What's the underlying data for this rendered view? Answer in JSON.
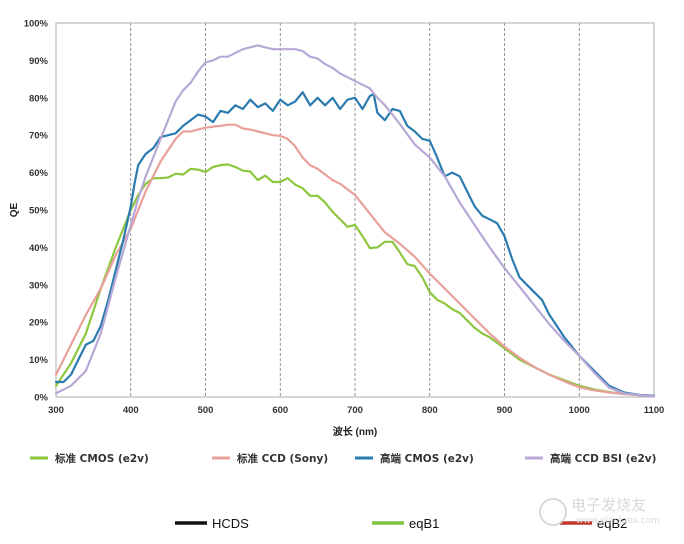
{
  "chart_data": {
    "type": "line",
    "title": "",
    "xlabel": "波长 (nm)",
    "ylabel": "QE",
    "xlim": [
      300,
      1100
    ],
    "ylim": [
      0,
      100
    ],
    "xticks": [
      300,
      400,
      500,
      600,
      700,
      800,
      900,
      1000,
      1100
    ],
    "xtick_labels": [
      "300",
      "400",
      "500",
      "600",
      "700",
      "800",
      "900",
      "1000",
      "1100"
    ],
    "yticks": [
      0,
      10,
      20,
      30,
      40,
      50,
      60,
      70,
      80,
      90,
      100
    ],
    "ytick_labels": [
      "0%",
      "10%",
      "20%",
      "30%",
      "40%",
      "50%",
      "60%",
      "70%",
      "80%",
      "90%",
      "100%"
    ],
    "grid": "vertical-dashed",
    "legend_position": "bottom",
    "series": [
      {
        "name": "标准 CMOS (e2v)",
        "color": "#8dc63f",
        "points": [
          [
            300,
            3
          ],
          [
            320,
            9
          ],
          [
            340,
            17
          ],
          [
            360,
            29
          ],
          [
            380,
            40
          ],
          [
            400,
            50
          ],
          [
            410,
            54
          ],
          [
            420,
            57
          ],
          [
            430,
            58.5
          ],
          [
            440,
            58.5
          ],
          [
            450,
            58.7
          ],
          [
            460,
            59.7
          ],
          [
            470,
            59.5
          ],
          [
            480,
            61
          ],
          [
            490,
            60.8
          ],
          [
            500,
            60.2
          ],
          [
            510,
            61.5
          ],
          [
            520,
            62
          ],
          [
            530,
            62.2
          ],
          [
            540,
            61.5
          ],
          [
            550,
            60.5
          ],
          [
            560,
            60.3
          ],
          [
            570,
            58
          ],
          [
            580,
            59.2
          ],
          [
            590,
            57.5
          ],
          [
            600,
            57.5
          ],
          [
            610,
            58.5
          ],
          [
            620,
            56.8
          ],
          [
            630,
            55.8
          ],
          [
            640,
            53.8
          ],
          [
            650,
            53.8
          ],
          [
            660,
            52
          ],
          [
            670,
            49.5
          ],
          [
            680,
            47.5
          ],
          [
            690,
            45.5
          ],
          [
            700,
            46
          ],
          [
            710,
            43
          ],
          [
            720,
            39.8
          ],
          [
            730,
            40
          ],
          [
            740,
            41.5
          ],
          [
            750,
            41.5
          ],
          [
            760,
            38.7
          ],
          [
            770,
            35.5
          ],
          [
            780,
            35
          ],
          [
            790,
            32
          ],
          [
            800,
            28
          ],
          [
            810,
            26
          ],
          [
            820,
            25
          ],
          [
            830,
            23.5
          ],
          [
            840,
            22.5
          ],
          [
            850,
            20.5
          ],
          [
            860,
            18.5
          ],
          [
            870,
            17
          ],
          [
            880,
            16
          ],
          [
            890,
            14.5
          ],
          [
            900,
            13
          ],
          [
            910,
            11.5
          ],
          [
            920,
            10
          ],
          [
            940,
            8
          ],
          [
            960,
            6
          ],
          [
            980,
            4.5
          ],
          [
            1000,
            3
          ],
          [
            1020,
            2
          ],
          [
            1040,
            1.3
          ],
          [
            1060,
            0.8
          ],
          [
            1080,
            0.5
          ],
          [
            1100,
            0.3
          ]
        ]
      },
      {
        "name": "标准 CCD (Sony)",
        "color": "#e8a09a",
        "points": [
          [
            300,
            6
          ],
          [
            320,
            14
          ],
          [
            340,
            22
          ],
          [
            360,
            29
          ],
          [
            380,
            38
          ],
          [
            400,
            45
          ],
          [
            420,
            55
          ],
          [
            440,
            63
          ],
          [
            460,
            69
          ],
          [
            470,
            71
          ],
          [
            480,
            71
          ],
          [
            490,
            71.5
          ],
          [
            500,
            72
          ],
          [
            510,
            72.3
          ],
          [
            520,
            72.5
          ],
          [
            530,
            72.8
          ],
          [
            540,
            72.8
          ],
          [
            550,
            71.8
          ],
          [
            560,
            71.5
          ],
          [
            570,
            71
          ],
          [
            580,
            70.5
          ],
          [
            590,
            70
          ],
          [
            600,
            69.8
          ],
          [
            610,
            69
          ],
          [
            620,
            67
          ],
          [
            630,
            64
          ],
          [
            640,
            62
          ],
          [
            650,
            61
          ],
          [
            660,
            59.5
          ],
          [
            670,
            58
          ],
          [
            680,
            57
          ],
          [
            690,
            55.5
          ],
          [
            700,
            54
          ],
          [
            710,
            51.5
          ],
          [
            720,
            49
          ],
          [
            730,
            46.5
          ],
          [
            740,
            44
          ],
          [
            760,
            41
          ],
          [
            780,
            37.5
          ],
          [
            800,
            33
          ],
          [
            820,
            29
          ],
          [
            840,
            25
          ],
          [
            860,
            21
          ],
          [
            880,
            17
          ],
          [
            900,
            13.5
          ],
          [
            920,
            10.5
          ],
          [
            940,
            8
          ],
          [
            960,
            6
          ],
          [
            980,
            4.2
          ],
          [
            1000,
            2.6
          ],
          [
            1020,
            1.8
          ],
          [
            1040,
            1.2
          ],
          [
            1060,
            0.8
          ],
          [
            1080,
            0.5
          ],
          [
            1100,
            0.3
          ]
        ]
      },
      {
        "name": "高端 CMOS (e2v)",
        "color": "#2b7bb0",
        "points": [
          [
            300,
            4
          ],
          [
            310,
            4
          ],
          [
            320,
            6
          ],
          [
            330,
            10
          ],
          [
            340,
            14
          ],
          [
            350,
            15
          ],
          [
            360,
            19
          ],
          [
            370,
            26
          ],
          [
            380,
            34
          ],
          [
            390,
            42
          ],
          [
            400,
            51
          ],
          [
            405,
            57
          ],
          [
            410,
            62
          ],
          [
            420,
            65
          ],
          [
            430,
            66.5
          ],
          [
            440,
            69.5
          ],
          [
            450,
            70
          ],
          [
            460,
            70.5
          ],
          [
            470,
            72.5
          ],
          [
            480,
            74
          ],
          [
            490,
            75.5
          ],
          [
            500,
            75
          ],
          [
            510,
            73.5
          ],
          [
            520,
            76.5
          ],
          [
            530,
            76
          ],
          [
            540,
            78
          ],
          [
            550,
            77
          ],
          [
            560,
            79.5
          ],
          [
            570,
            77.5
          ],
          [
            580,
            78.5
          ],
          [
            590,
            76.5
          ],
          [
            600,
            79.5
          ],
          [
            610,
            78
          ],
          [
            620,
            79
          ],
          [
            630,
            81.5
          ],
          [
            640,
            78
          ],
          [
            650,
            80
          ],
          [
            660,
            78
          ],
          [
            670,
            80
          ],
          [
            680,
            77
          ],
          [
            690,
            79.5
          ],
          [
            700,
            80
          ],
          [
            710,
            77
          ],
          [
            720,
            80.5
          ],
          [
            725,
            81
          ],
          [
            730,
            76
          ],
          [
            740,
            74
          ],
          [
            750,
            77
          ],
          [
            760,
            76.5
          ],
          [
            770,
            72.5
          ],
          [
            780,
            71
          ],
          [
            790,
            69
          ],
          [
            800,
            68.5
          ],
          [
            810,
            64
          ],
          [
            820,
            59
          ],
          [
            830,
            60
          ],
          [
            840,
            59
          ],
          [
            850,
            55
          ],
          [
            860,
            51
          ],
          [
            870,
            48.5
          ],
          [
            880,
            47.5
          ],
          [
            890,
            46.5
          ],
          [
            900,
            43
          ],
          [
            910,
            37
          ],
          [
            920,
            32
          ],
          [
            930,
            30
          ],
          [
            940,
            28
          ],
          [
            950,
            26
          ],
          [
            960,
            22
          ],
          [
            970,
            19
          ],
          [
            980,
            16
          ],
          [
            990,
            13.5
          ],
          [
            1000,
            11
          ],
          [
            1020,
            7
          ],
          [
            1040,
            3
          ],
          [
            1060,
            1.2
          ],
          [
            1080,
            0.6
          ],
          [
            1100,
            0.3
          ]
        ]
      },
      {
        "name": "高端 CCD BSI (e2v)",
        "color": "#b7a8d6",
        "points": [
          [
            300,
            1
          ],
          [
            320,
            3
          ],
          [
            340,
            7
          ],
          [
            360,
            17
          ],
          [
            380,
            32
          ],
          [
            400,
            46
          ],
          [
            410,
            53
          ],
          [
            420,
            59
          ],
          [
            430,
            64
          ],
          [
            440,
            69
          ],
          [
            450,
            74
          ],
          [
            460,
            79
          ],
          [
            470,
            82
          ],
          [
            480,
            84
          ],
          [
            490,
            87
          ],
          [
            500,
            89.5
          ],
          [
            510,
            90
          ],
          [
            520,
            91
          ],
          [
            530,
            91
          ],
          [
            540,
            92
          ],
          [
            550,
            93
          ],
          [
            560,
            93.5
          ],
          [
            570,
            94
          ],
          [
            580,
            93.5
          ],
          [
            590,
            93
          ],
          [
            600,
            93
          ],
          [
            610,
            93
          ],
          [
            620,
            93
          ],
          [
            630,
            92.5
          ],
          [
            640,
            91
          ],
          [
            650,
            90.5
          ],
          [
            660,
            89
          ],
          [
            670,
            88
          ],
          [
            680,
            86.5
          ],
          [
            690,
            85.5
          ],
          [
            700,
            84.5
          ],
          [
            710,
            83.5
          ],
          [
            720,
            82.5
          ],
          [
            730,
            80
          ],
          [
            740,
            78
          ],
          [
            750,
            75.5
          ],
          [
            760,
            73
          ],
          [
            780,
            67.5
          ],
          [
            800,
            64
          ],
          [
            820,
            59
          ],
          [
            840,
            52
          ],
          [
            860,
            46
          ],
          [
            880,
            40
          ],
          [
            900,
            34.5
          ],
          [
            920,
            29.5
          ],
          [
            940,
            24.5
          ],
          [
            960,
            19.5
          ],
          [
            980,
            15
          ],
          [
            1000,
            11
          ],
          [
            1020,
            6.5
          ],
          [
            1040,
            2.5
          ],
          [
            1060,
            1
          ],
          [
            1080,
            0.5
          ],
          [
            1100,
            0.2
          ]
        ]
      }
    ]
  },
  "legend_row_1": [
    {
      "label": "标准 CMOS (e2v)",
      "color": "#8dc63f"
    },
    {
      "label": "标准 CCD (Sony)",
      "color": "#e8a09a"
    },
    {
      "label": "高端 CMOS (e2v)",
      "color": "#2b7bb0"
    },
    {
      "label": "高端 CCD BSI (e2v)",
      "color": "#b7a8d6"
    }
  ],
  "legend_row_2": [
    {
      "label": "HCDS",
      "color": "#111111"
    },
    {
      "label": "eqB1",
      "color": "#7fc241"
    },
    {
      "label": "eqB2",
      "color": "#c0392b"
    }
  ],
  "watermark": {
    "text": "电子发烧友",
    "subtext": "www.elecfans.com"
  }
}
